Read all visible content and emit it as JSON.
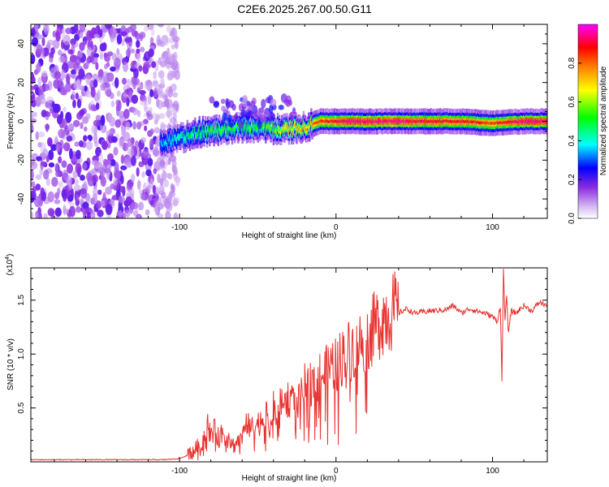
{
  "figure_title": "C2E6.2025.267.00.50.G11",
  "chart_data": [
    {
      "type": "heatmap",
      "xlabel": "Height of straight line (km)",
      "ylabel": "Frequency (Hz)",
      "xlim": [
        -195,
        135
      ],
      "ylim": [
        -50,
        50
      ],
      "xticks": [
        -100,
        0,
        100
      ],
      "xtick_labels": [
        "-100",
        "0",
        "100"
      ],
      "yticks": [
        -40,
        -20,
        0,
        20,
        40
      ],
      "ytick_labels": [
        "-40",
        "-20",
        "0",
        "20",
        "40"
      ],
      "noise_region_x": [
        -195,
        -107
      ],
      "ridge": {
        "x": [
          -112,
          -100,
          -90,
          -80,
          -70,
          -60,
          -50,
          -40,
          -30,
          -20,
          -10,
          0,
          10,
          20,
          40,
          60,
          80,
          100,
          120,
          135
        ],
        "freq_hz": [
          -11,
          -9,
          -6,
          -5,
          -4,
          -3,
          -3,
          -4,
          -4,
          -3,
          0,
          0,
          0,
          0,
          0,
          0,
          0,
          -1,
          0,
          0
        ],
        "amplitude": [
          0.35,
          0.45,
          0.5,
          0.55,
          0.55,
          0.55,
          0.55,
          0.6,
          0.75,
          0.75,
          0.85,
          0.9,
          0.95,
          0.95,
          0.95,
          0.9,
          0.9,
          0.85,
          0.95,
          0.95
        ]
      },
      "colorbar": {
        "label": "Normalized spectral amplitude",
        "range": [
          0,
          1
        ],
        "ticks": [
          0.0,
          0.2,
          0.4,
          0.6,
          0.8
        ],
        "tick_labels": [
          "0.0",
          "0.2",
          "0.4",
          "0.6",
          "0.8"
        ],
        "colors": [
          "#ffffff",
          "#c8a0f0",
          "#8a2be2",
          "#0000ff",
          "#00ffff",
          "#00ff00",
          "#ffff00",
          "#ff8000",
          "#ff0000",
          "#ff00ff"
        ]
      }
    },
    {
      "type": "line",
      "xlabel": "Height of straight line (km)",
      "ylabel": "SNR (10 * v/v)",
      "scale_note_base": "(x10",
      "scale_note_exp": "4",
      "scale_note_close": ")",
      "xlim": [
        -195,
        135
      ],
      "ylim": [
        0,
        1.8
      ],
      "xticks": [
        -100,
        0,
        100
      ],
      "xtick_labels": [
        "-100",
        "0",
        "100"
      ],
      "yticks": [
        0.5,
        1.0,
        1.5
      ],
      "ytick_labels": [
        "0.5",
        "1.0",
        "1.5"
      ],
      "line_color": "#e8322f",
      "series": [
        {
          "name": "SNR",
          "x": [
            -195,
            -150,
            -110,
            -100,
            -95,
            -90,
            -85,
            -82,
            -80,
            -78,
            -75,
            -72,
            -70,
            -65,
            -60,
            -58,
            -55,
            -50,
            -45,
            -42,
            -40,
            -38,
            -35,
            -30,
            -25,
            -20,
            -15,
            -10,
            -5,
            0,
            5,
            10,
            15,
            20,
            25,
            30,
            35,
            40,
            45,
            50,
            60,
            70,
            75,
            80,
            85,
            90,
            95,
            100,
            103,
            105,
            106,
            107,
            108,
            109,
            110,
            112,
            115,
            120,
            125,
            130,
            135
          ],
          "values": [
            0.02,
            0.02,
            0.02,
            0.03,
            0.06,
            0.12,
            0.2,
            0.35,
            0.25,
            0.3,
            0.22,
            0.28,
            0.2,
            0.15,
            0.25,
            0.4,
            0.3,
            0.35,
            0.45,
            0.3,
            0.5,
            0.4,
            0.55,
            0.6,
            0.5,
            0.7,
            0.75,
            0.8,
            0.85,
            0.9,
            1.0,
            1.05,
            1.1,
            1.15,
            1.25,
            1.35,
            1.4,
            1.38,
            1.42,
            1.38,
            1.4,
            1.41,
            1.45,
            1.38,
            1.42,
            1.4,
            1.38,
            1.35,
            1.3,
            1.45,
            0.75,
            1.8,
            1.3,
            1.55,
            1.2,
            1.4,
            1.38,
            1.45,
            1.4,
            1.48,
            1.45
          ]
        }
      ]
    }
  ]
}
